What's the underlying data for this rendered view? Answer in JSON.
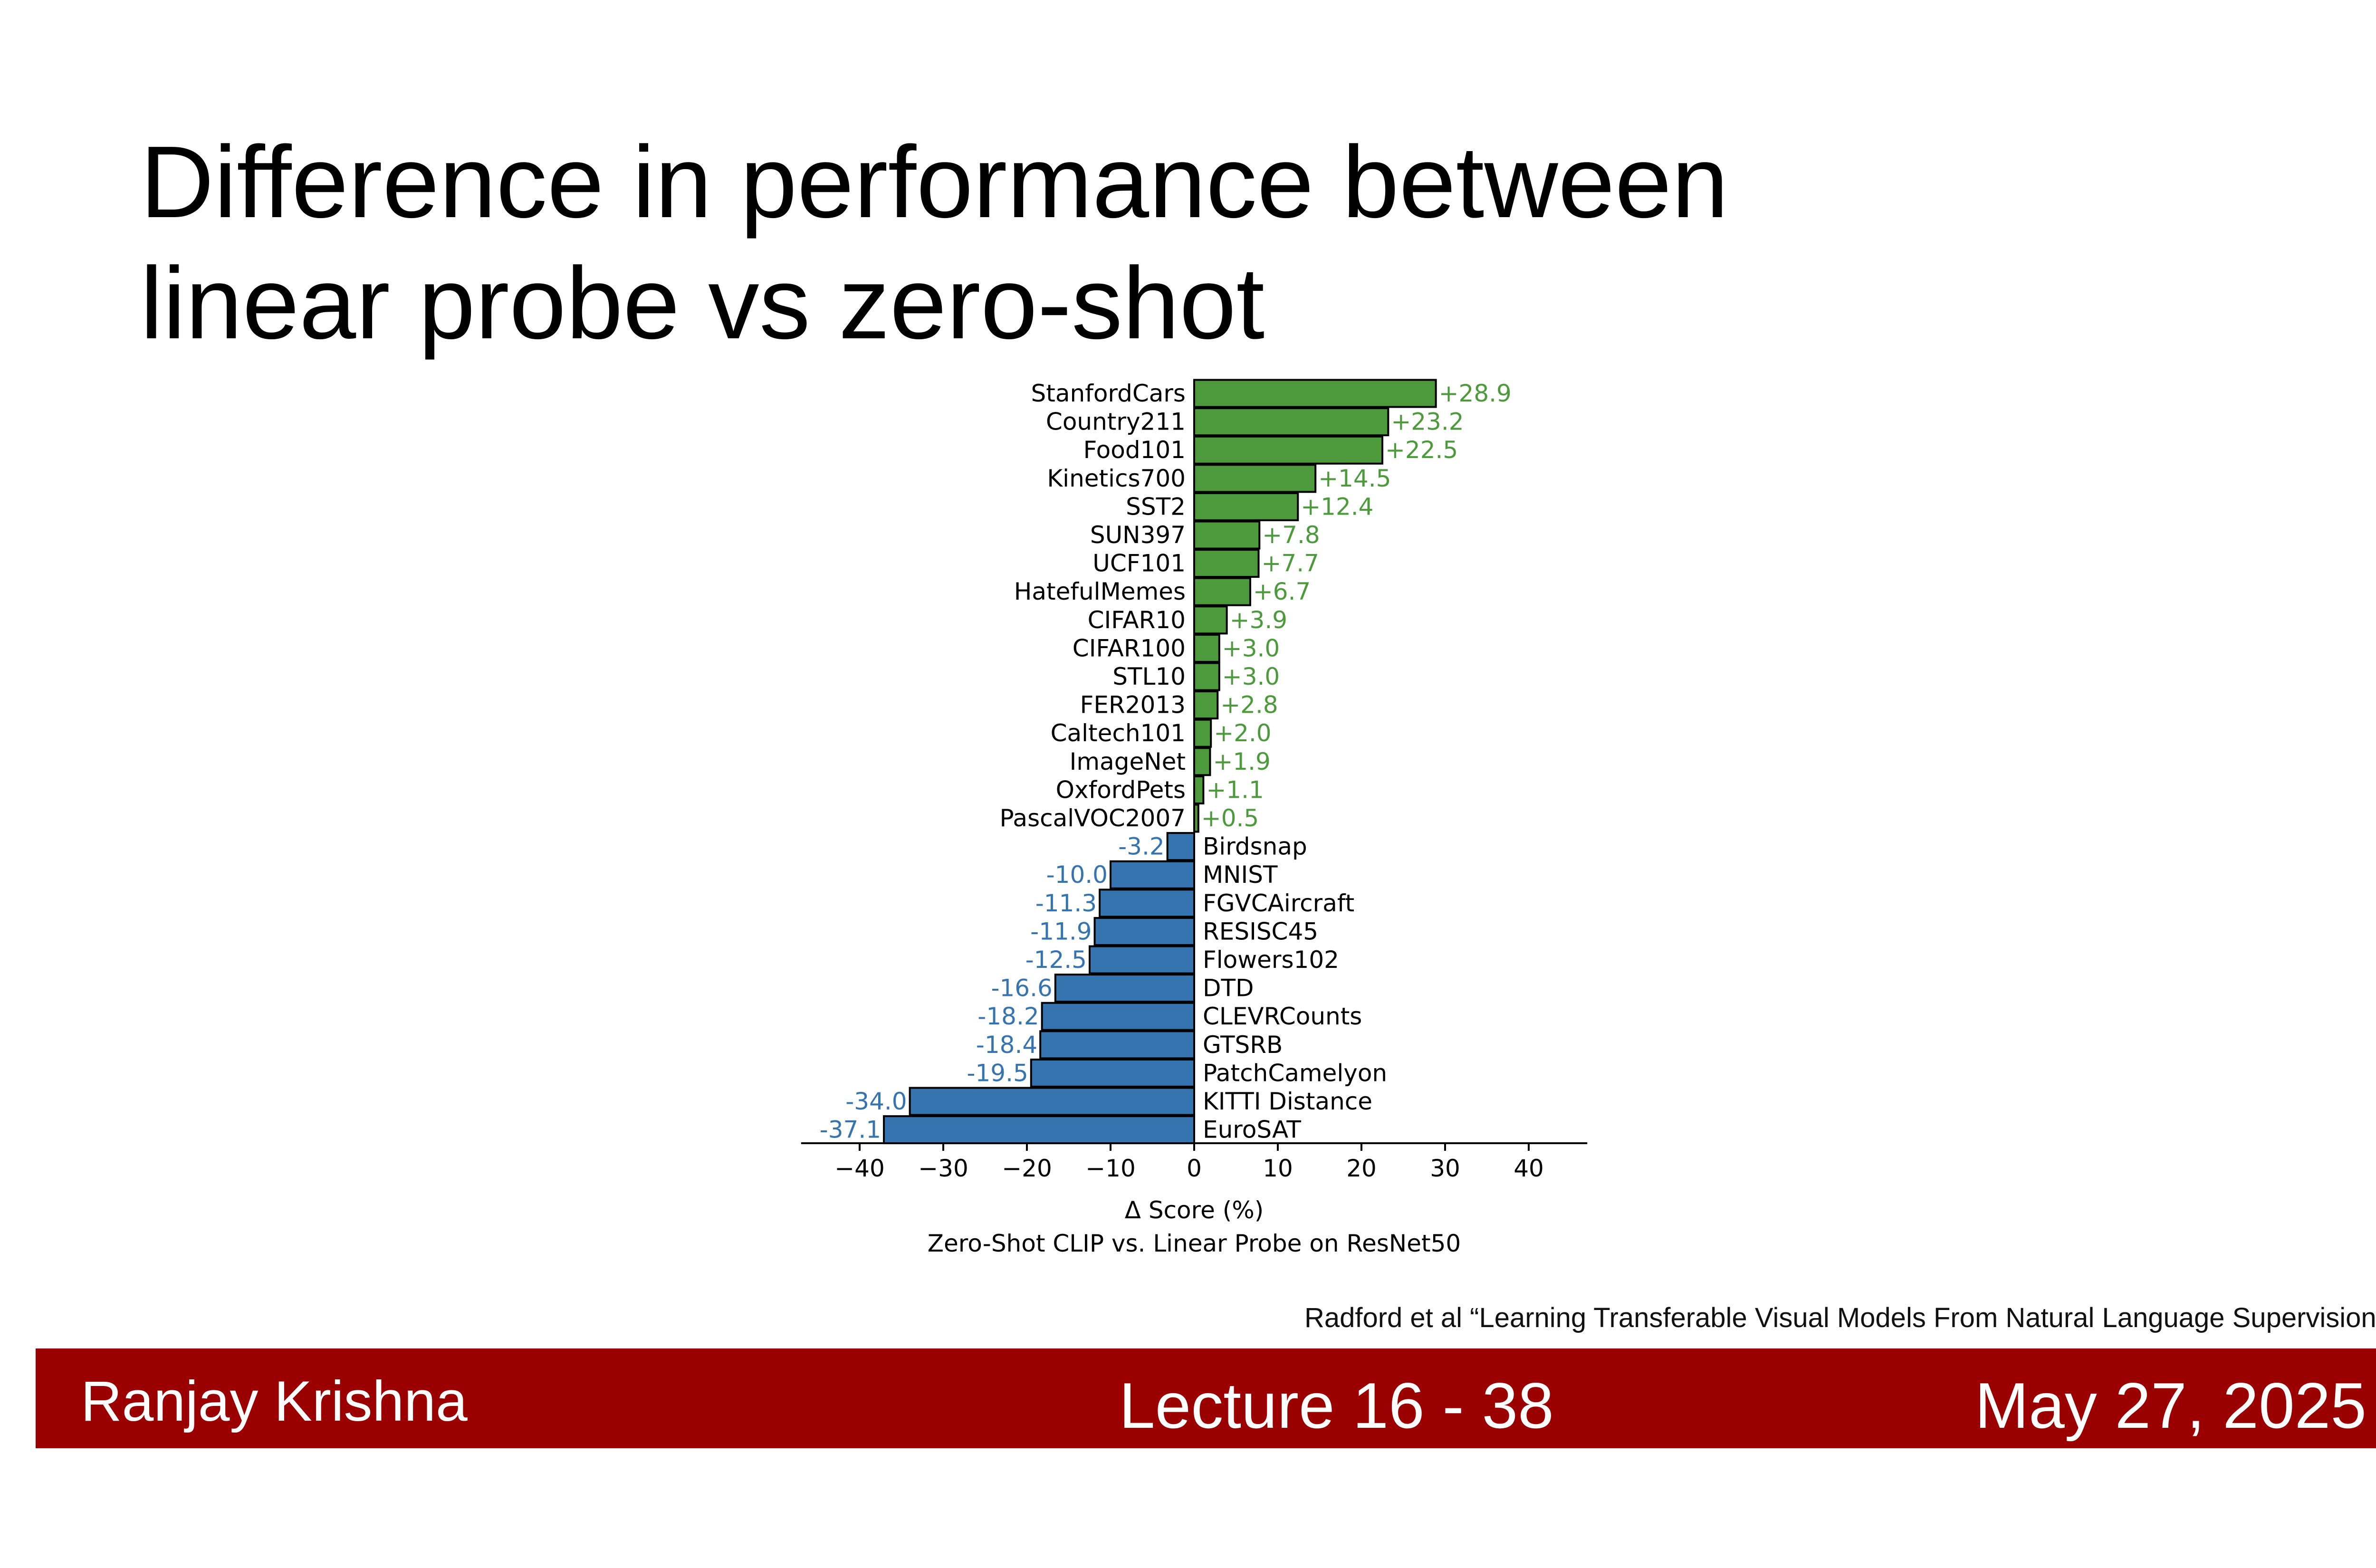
{
  "slide": {
    "title_line1": "Difference in performance between",
    "title_line2": "linear probe vs zero-shot",
    "citation": "Radford et al “Learning Transferable Visual Models From Natural Language Supervision”"
  },
  "footer": {
    "author": "Ranjay Krishna",
    "lecture": "Lecture 16 -  38",
    "date": "May 27, 2025"
  },
  "colors": {
    "positive": "#4c9a3c",
    "negative": "#3674b0",
    "footer_bg": "#9b0000"
  },
  "chart_data": {
    "type": "bar",
    "orientation": "horizontal",
    "xlabel": "Δ Score (%)",
    "subtitle": "Zero-Shot CLIP vs. Linear Probe on ResNet50",
    "xlim": [
      -47,
      47
    ],
    "xticks": [
      -40,
      -30,
      -20,
      -10,
      0,
      10,
      20,
      30,
      40
    ],
    "xtick_labels": [
      "−40",
      "−30",
      "−20",
      "−10",
      "0",
      "10",
      "20",
      "30",
      "40"
    ],
    "categories": [
      "StanfordCars",
      "Country211",
      "Food101",
      "Kinetics700",
      "SST2",
      "SUN397",
      "UCF101",
      "HatefulMemes",
      "CIFAR10",
      "CIFAR100",
      "STL10",
      "FER2013",
      "Caltech101",
      "ImageNet",
      "OxfordPets",
      "PascalVOC2007",
      "Birdsnap",
      "MNIST",
      "FGVCAircraft",
      "RESISC45",
      "Flowers102",
      "DTD",
      "CLEVRCounts",
      "GTSRB",
      "PatchCamelyon",
      "KITTI Distance",
      "EuroSAT"
    ],
    "values": [
      28.9,
      23.2,
      22.5,
      14.5,
      12.4,
      7.8,
      7.7,
      6.7,
      3.9,
      3.0,
      3.0,
      2.8,
      2.0,
      1.9,
      1.1,
      0.5,
      -3.2,
      -10.0,
      -11.3,
      -11.9,
      -12.5,
      -16.6,
      -18.2,
      -18.4,
      -19.5,
      -34.0,
      -37.1
    ],
    "value_labels": [
      "+28.9",
      "+23.2",
      "+22.5",
      "+14.5",
      "+12.4",
      "+7.8",
      "+7.7",
      "+6.7",
      "+3.9",
      "+3.0",
      "+3.0",
      "+2.8",
      "+2.0",
      "+1.9",
      "+1.1",
      "+0.5",
      "-3.2",
      "-10.0",
      "-11.3",
      "-11.9",
      "-12.5",
      "-16.6",
      "-18.2",
      "-18.4",
      "-19.5",
      "-34.0",
      "-37.1"
    ],
    "grid": false
  }
}
